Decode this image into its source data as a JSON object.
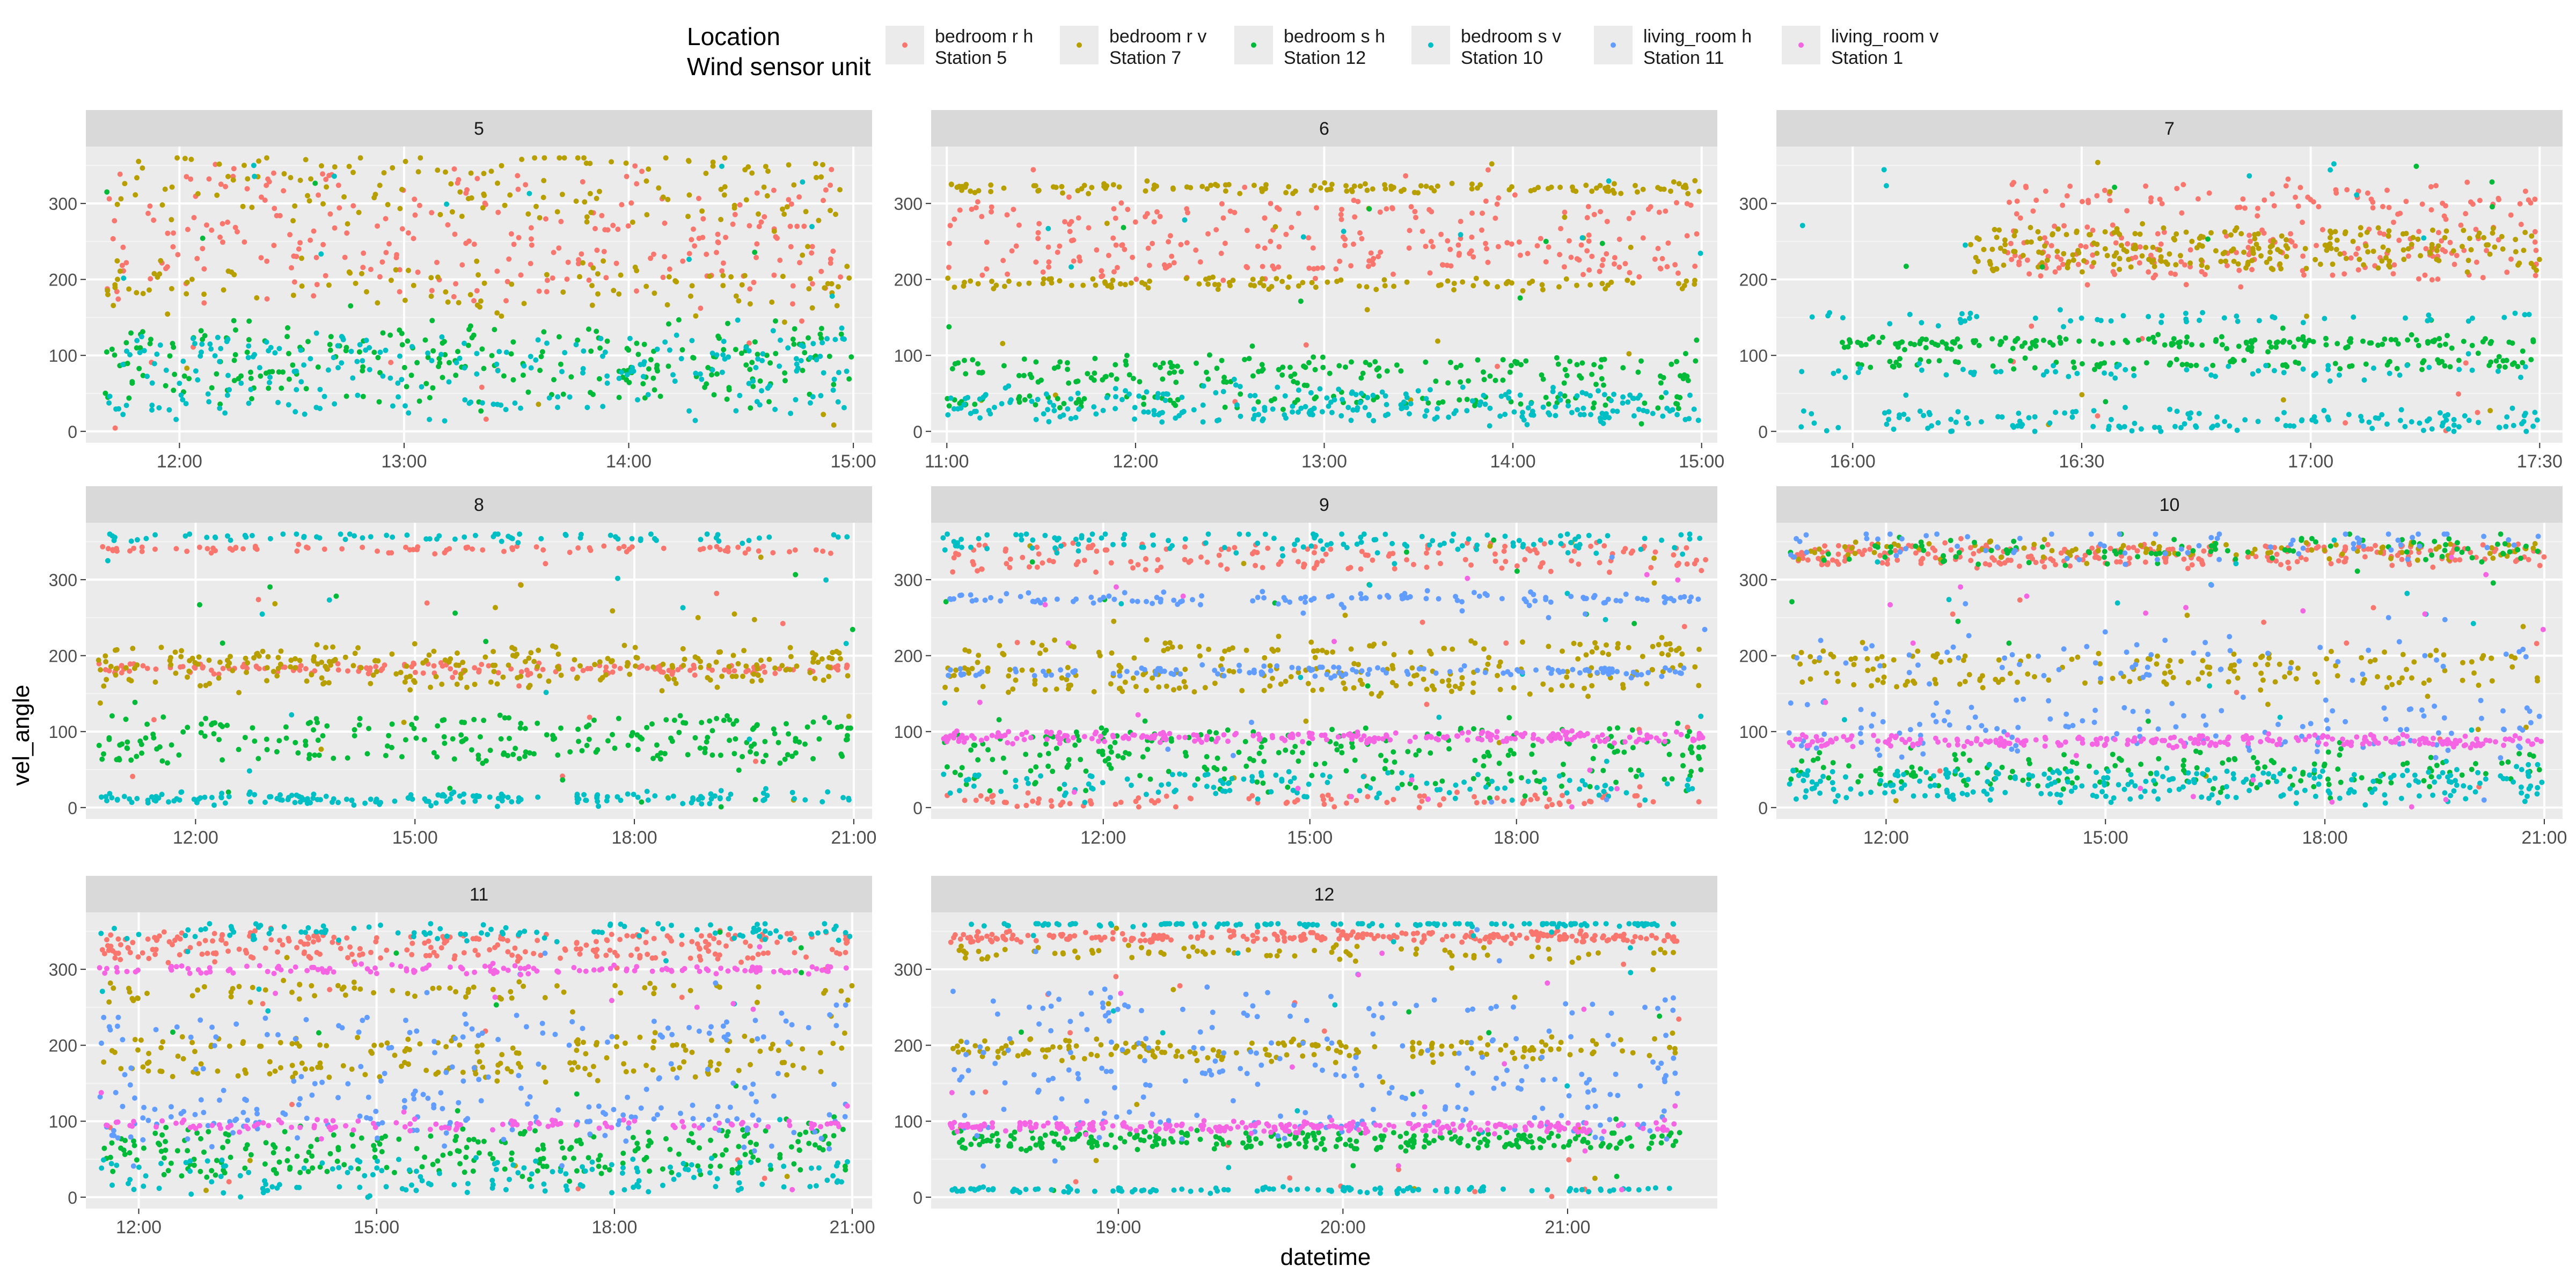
{
  "legend": {
    "title_line1": "Location",
    "title_line2": "Wind sensor unit",
    "items": [
      {
        "line1": "bedroom r h",
        "line2": "Station 5",
        "color": "#F8766D"
      },
      {
        "line1": "bedroom r v",
        "line2": "Station 7",
        "color": "#B79F00"
      },
      {
        "line1": "bedroom s h",
        "line2": "Station 12",
        "color": "#00BA38"
      },
      {
        "line1": "bedroom s v",
        "line2": "Station 10",
        "color": "#00BFC4"
      },
      {
        "line1": "living_room  h",
        "line2": "Station 11",
        "color": "#619CFF"
      },
      {
        "line1": "living_room  v",
        "line2": "Station 1",
        "color": "#F564E3"
      }
    ]
  },
  "chart_data": {
    "type": "scatter",
    "xlabel": "datetime",
    "ylabel": "vel_angle",
    "ylim": [
      0,
      360
    ],
    "yticks": [
      0,
      100,
      200,
      300
    ],
    "grid": true,
    "legend_position": "top",
    "series": [
      {
        "name": "bedroom r h Station 5",
        "color": "#F8766D"
      },
      {
        "name": "bedroom r v Station 7",
        "color": "#B79F00"
      },
      {
        "name": "bedroom s h Station 12",
        "color": "#00BA38"
      },
      {
        "name": "bedroom s v Station 10",
        "color": "#00BFC4"
      },
      {
        "name": "living_room  h Station 11",
        "color": "#619CFF"
      },
      {
        "name": "living_room  v Station 1",
        "color": "#F564E3"
      }
    ],
    "panels": [
      {
        "label": "5",
        "xrange": [
          "11:35",
          "15:05"
        ],
        "xticks": [
          "12:00",
          "13:00",
          "14:00",
          "15:00"
        ],
        "bands": [
          {
            "s": 0,
            "from": "11:40",
            "to": "15:00",
            "levels": [
              270,
              240,
              200,
              320
            ],
            "spread": 50
          },
          {
            "s": 1,
            "from": "11:40",
            "to": "15:00",
            "levels": [
              200,
              300,
              180,
              350
            ],
            "spread": 45
          },
          {
            "s": 2,
            "from": "11:40",
            "to": "15:00",
            "levels": [
              90,
              120,
              60
            ],
            "spread": 35
          },
          {
            "s": 3,
            "from": "11:40",
            "to": "15:00",
            "levels": [
              40,
              80,
              110
            ],
            "spread": 35
          }
        ]
      },
      {
        "label": "6",
        "xrange": [
          "10:55",
          "15:05"
        ],
        "xticks": [
          "11:00",
          "12:00",
          "13:00",
          "14:00",
          "15:00"
        ],
        "bands": [
          {
            "s": 0,
            "from": "11:00",
            "to": "15:00",
            "levels": [
              290,
              250,
              220
            ],
            "spread": 30
          },
          {
            "s": 1,
            "from": "11:00",
            "to": "15:00",
            "levels": [
              195,
              320
            ],
            "spread": 12
          },
          {
            "s": 2,
            "from": "11:00",
            "to": "15:00",
            "levels": [
              70,
              90,
              40
            ],
            "spread": 15
          },
          {
            "s": 3,
            "from": "11:00",
            "to": "15:00",
            "levels": [
              30,
              20,
              50
            ],
            "spread": 15
          }
        ]
      },
      {
        "label": "7",
        "xrange": [
          "15:50",
          "17:33"
        ],
        "xticks": [
          "16:00",
          "16:30",
          "17:00",
          "17:30"
        ],
        "bands": [
          {
            "s": 0,
            "from": "16:20",
            "to": "17:30",
            "levels": [
              250,
              220,
              300
            ],
            "spread": 40
          },
          {
            "s": 1,
            "from": "16:15",
            "to": "17:30",
            "levels": [
              260,
              240,
              220
            ],
            "spread": 15
          },
          {
            "s": 2,
            "from": "15:58",
            "to": "17:30",
            "levels": [
              115,
              120,
              90
            ],
            "spread": 12
          },
          {
            "s": 3,
            "from": "15:53",
            "to": "17:30",
            "levels": [
              150,
              80,
              20,
              8
            ],
            "spread": 15
          }
        ]
      },
      {
        "label": "8",
        "xrange": [
          "10:30",
          "21:15"
        ],
        "xticks": [
          "12:00",
          "15:00",
          "18:00",
          "21:00"
        ],
        "bands": [
          {
            "s": 0,
            "from": "10:40",
            "to": "21:00",
            "levels": [
              185,
              180,
              340
            ],
            "spread": 8
          },
          {
            "s": 1,
            "from": "10:40",
            "to": "21:00",
            "levels": [
              200,
              170,
              190
            ],
            "spread": 20
          },
          {
            "s": 2,
            "from": "10:40",
            "to": "21:00",
            "levels": [
              90,
              110,
              70
            ],
            "spread": 15
          },
          {
            "s": 3,
            "from": "10:40",
            "to": "21:00",
            "levels": [
              15,
              10,
              355
            ],
            "spread": 10
          }
        ]
      },
      {
        "label": "9",
        "xrange": [
          "09:30",
          "20:55"
        ],
        "xticks": [
          "12:00",
          "15:00",
          "18:00"
        ],
        "bands": [
          {
            "s": 0,
            "from": "09:40",
            "to": "20:45",
            "levels": [
              340,
              10,
              320
            ],
            "spread": 15
          },
          {
            "s": 1,
            "from": "09:40",
            "to": "20:45",
            "levels": [
              180,
              160,
              210
            ],
            "spread": 20
          },
          {
            "s": 2,
            "from": "09:40",
            "to": "20:45",
            "levels": [
              70,
              40,
              90
            ],
            "spread": 30
          },
          {
            "s": 3,
            "from": "09:40",
            "to": "20:45",
            "levels": [
              30,
              350
            ],
            "spread": 25
          },
          {
            "s": 4,
            "from": "09:40",
            "to": "20:45",
            "levels": [
              275,
              180
            ],
            "spread": 12
          },
          {
            "s": 5,
            "from": "09:40",
            "to": "20:45",
            "levels": [
              95,
              90
            ],
            "spread": 8
          }
        ]
      },
      {
        "label": "10",
        "xrange": [
          "10:30",
          "21:15"
        ],
        "xticks": [
          "12:00",
          "15:00",
          "18:00",
          "21:00"
        ],
        "bands": [
          {
            "s": 0,
            "from": "10:40",
            "to": "21:00",
            "levels": [
              340,
              325
            ],
            "spread": 12
          },
          {
            "s": 1,
            "from": "10:40",
            "to": "21:00",
            "levels": [
              195,
              170,
              340
            ],
            "spread": 20
          },
          {
            "s": 2,
            "from": "10:40",
            "to": "21:00",
            "levels": [
              60,
              40,
              340
            ],
            "spread": 30
          },
          {
            "s": 3,
            "from": "10:40",
            "to": "21:00",
            "levels": [
              20,
              40
            ],
            "spread": 20
          },
          {
            "s": 4,
            "from": "10:40",
            "to": "21:00",
            "levels": [
              120,
              200,
              350,
              90
            ],
            "spread": 40
          },
          {
            "s": 5,
            "from": "10:40",
            "to": "21:00",
            "levels": [
              90,
              85
            ],
            "spread": 8
          }
        ]
      },
      {
        "label": "11",
        "xrange": [
          "11:20",
          "21:15"
        ],
        "xticks": [
          "12:00",
          "15:00",
          "18:00",
          "21:00"
        ],
        "bands": [
          {
            "s": 0,
            "from": "11:30",
            "to": "21:00",
            "levels": [
              340,
              320
            ],
            "spread": 15
          },
          {
            "s": 1,
            "from": "11:30",
            "to": "21:00",
            "levels": [
              200,
              170,
              270
            ],
            "spread": 20
          },
          {
            "s": 2,
            "from": "11:30",
            "to": "21:00",
            "levels": [
              60,
              40,
              80
            ],
            "spread": 25
          },
          {
            "s": 3,
            "from": "11:30",
            "to": "21:00",
            "levels": [
              15,
              40,
              350
            ],
            "spread": 20
          },
          {
            "s": 4,
            "from": "11:30",
            "to": "21:00",
            "levels": [
              110,
              150,
              220,
              90
            ],
            "spread": 40
          },
          {
            "s": 5,
            "from": "11:30",
            "to": "21:00",
            "levels": [
              95,
              300
            ],
            "spread": 10
          }
        ]
      },
      {
        "label": "12",
        "xrange": [
          "18:10",
          "21:40"
        ],
        "xticks": [
          "19:00",
          "20:00",
          "21:00"
        ],
        "bands": [
          {
            "s": 0,
            "from": "18:15",
            "to": "21:30",
            "levels": [
              340,
              345
            ],
            "spread": 8
          },
          {
            "s": 1,
            "from": "18:15",
            "to": "21:30",
            "levels": [
              200,
              190,
              320
            ],
            "spread": 15
          },
          {
            "s": 2,
            "from": "18:15",
            "to": "21:30",
            "levels": [
              70,
              80
            ],
            "spread": 12
          },
          {
            "s": 3,
            "from": "18:15",
            "to": "21:30",
            "levels": [
              10,
              360
            ],
            "spread": 6
          },
          {
            "s": 4,
            "from": "18:15",
            "to": "21:30",
            "levels": [
              250,
              200,
              150,
              100
            ],
            "spread": 40
          },
          {
            "s": 5,
            "from": "18:15",
            "to": "21:30",
            "levels": [
              90,
              95
            ],
            "spread": 8
          }
        ]
      }
    ]
  }
}
